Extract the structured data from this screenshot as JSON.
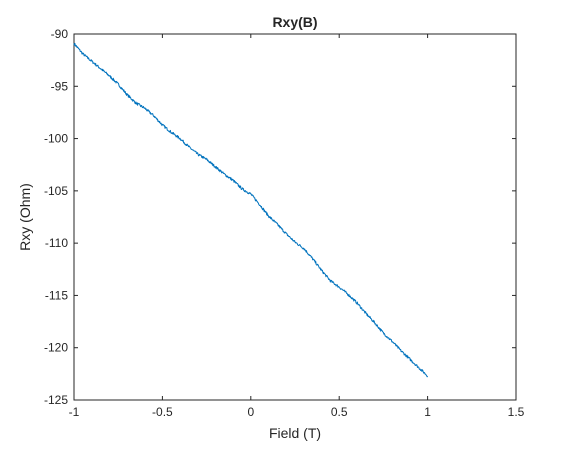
{
  "chart_data": {
    "type": "line",
    "title": "Rxy(B)",
    "xlabel": "Field (T)",
    "ylabel": "Rxy (Ohm)",
    "xlim": [
      -1,
      1.5
    ],
    "ylim": [
      -125,
      -90
    ],
    "xticks": [
      -1,
      -0.5,
      0,
      0.5,
      1,
      1.5
    ],
    "xtick_labels": [
      "-1",
      "-0.5",
      "0",
      "0.5",
      "1",
      "1.5"
    ],
    "yticks": [
      -90,
      -95,
      -100,
      -105,
      -110,
      -115,
      -120,
      -125
    ],
    "ytick_labels": [
      "-90",
      "-95",
      "-100",
      "-105",
      "-110",
      "-115",
      "-120",
      "-125"
    ],
    "grid": false,
    "line_color": "#0072BD",
    "series": [
      {
        "x": [
          -1.0,
          -0.95,
          -0.9,
          -0.85,
          -0.8,
          -0.75,
          -0.7,
          -0.65,
          -0.6,
          -0.55,
          -0.5,
          -0.45,
          -0.4,
          -0.35,
          -0.3,
          -0.25,
          -0.2,
          -0.15,
          -0.1,
          -0.05,
          0.0,
          0.05,
          0.1,
          0.15,
          0.2,
          0.25,
          0.3,
          0.35,
          0.4,
          0.45,
          0.5,
          0.55,
          0.6,
          0.65,
          0.7,
          0.75,
          0.8,
          0.85,
          0.9,
          0.95,
          1.0
        ],
        "values": [
          -90.9,
          -91.9,
          -92.6,
          -93.3,
          -94.0,
          -94.8,
          -95.8,
          -96.6,
          -97.1,
          -97.8,
          -98.7,
          -99.4,
          -100.0,
          -100.8,
          -101.5,
          -102.0,
          -102.7,
          -103.4,
          -104.0,
          -104.8,
          -105.3,
          -106.3,
          -107.4,
          -108.2,
          -109.1,
          -109.9,
          -110.5,
          -111.5,
          -112.6,
          -113.6,
          -114.2,
          -114.9,
          -115.7,
          -116.7,
          -117.6,
          -118.6,
          -119.4,
          -120.3,
          -121.1,
          -121.9,
          -122.7
        ]
      }
    ]
  }
}
